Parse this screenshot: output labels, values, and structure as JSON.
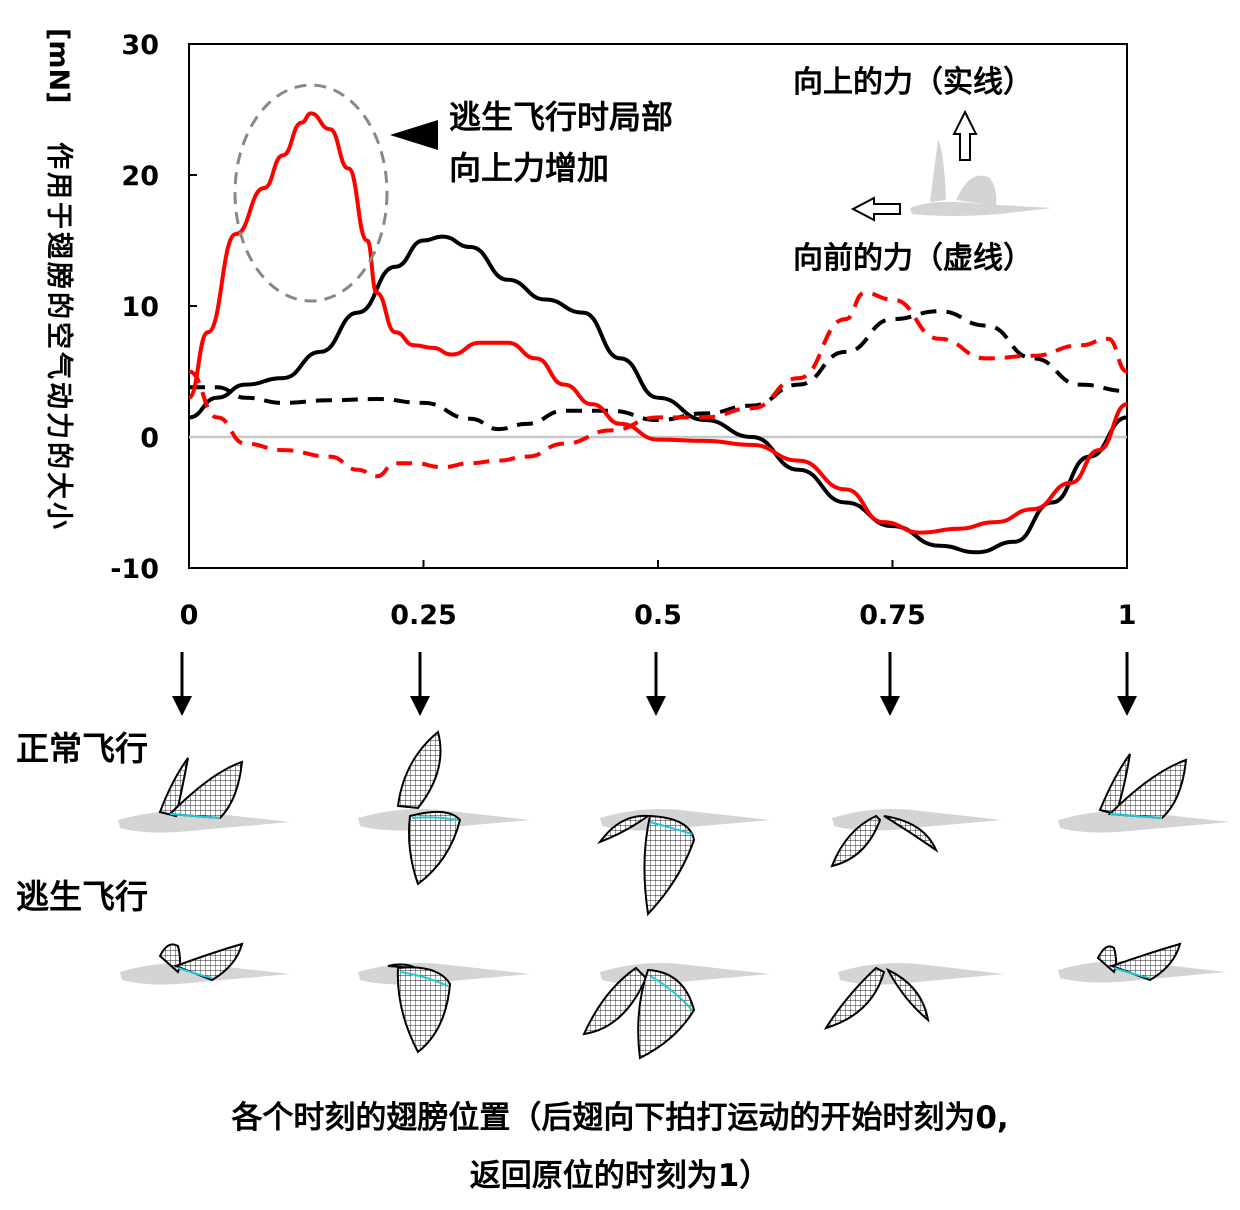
{
  "chart_data": {
    "type": "line",
    "ylabel": "[mN] 作用于翅膀的空气动力的大小",
    "ylabel_unit": "[mN]",
    "ylabel_text": "作用于翅膀的空气动力的大小",
    "xlim": [
      0,
      1
    ],
    "ylim": [
      -10,
      30
    ],
    "yticks": [
      "30",
      "20",
      "10",
      "0",
      "-10"
    ],
    "xticks": [
      "0",
      "0.25",
      "0.5",
      "0.75",
      "1"
    ],
    "grid": false,
    "series": [
      {
        "color": "#000000",
        "style": "solid",
        "x": [
          0,
          0.03,
          0.06,
          0.1,
          0.14,
          0.18,
          0.22,
          0.25,
          0.27,
          0.3,
          0.34,
          0.38,
          0.42,
          0.46,
          0.5,
          0.55,
          0.6,
          0.65,
          0.7,
          0.75,
          0.8,
          0.84,
          0.88,
          0.92,
          0.96,
          1.0
        ],
        "y": [
          1.5,
          3.0,
          4.0,
          4.5,
          6.5,
          9.5,
          13.0,
          15.0,
          15.3,
          14.5,
          12.0,
          10.5,
          9.5,
          6.0,
          3.0,
          1.3,
          0.0,
          -2.5,
          -5.0,
          -6.8,
          -8.3,
          -8.8,
          -8.0,
          -5.0,
          -1.5,
          1.5
        ]
      },
      {
        "color": "#000000",
        "style": "dashed",
        "x": [
          0,
          0.03,
          0.06,
          0.1,
          0.15,
          0.2,
          0.25,
          0.3,
          0.33,
          0.36,
          0.4,
          0.45,
          0.5,
          0.55,
          0.6,
          0.65,
          0.7,
          0.75,
          0.8,
          0.85,
          0.9,
          0.95,
          1.0
        ],
        "y": [
          3.8,
          3.8,
          3.0,
          2.6,
          2.8,
          2.9,
          2.6,
          1.4,
          0.6,
          1.0,
          2.0,
          2.0,
          1.3,
          1.8,
          2.4,
          4.0,
          6.5,
          9.0,
          9.6,
          8.5,
          6.0,
          4.0,
          3.5
        ]
      },
      {
        "color": "#ff0000",
        "style": "solid",
        "x": [
          0,
          0.02,
          0.05,
          0.08,
          0.1,
          0.12,
          0.13,
          0.15,
          0.17,
          0.19,
          0.2,
          0.22,
          0.24,
          0.26,
          0.28,
          0.31,
          0.34,
          0.37,
          0.4,
          0.43,
          0.46,
          0.5,
          0.55,
          0.6,
          0.65,
          0.7,
          0.74,
          0.78,
          0.82,
          0.86,
          0.9,
          0.94,
          0.97,
          1.0
        ],
        "y": [
          3.0,
          8.0,
          15.5,
          19.0,
          21.5,
          24.0,
          24.7,
          23.5,
          20.5,
          15.0,
          11.0,
          8.0,
          7.0,
          6.8,
          6.3,
          7.2,
          7.2,
          6.0,
          4.0,
          2.5,
          1.0,
          -0.2,
          -0.3,
          -0.6,
          -1.8,
          -4.0,
          -6.5,
          -7.3,
          -7.0,
          -6.5,
          -5.5,
          -3.5,
          -1.0,
          2.5
        ]
      },
      {
        "color": "#ff0000",
        "style": "dashed",
        "x": [
          0,
          0.03,
          0.06,
          0.1,
          0.15,
          0.18,
          0.2,
          0.22,
          0.24,
          0.27,
          0.3,
          0.33,
          0.36,
          0.4,
          0.45,
          0.5,
          0.55,
          0.6,
          0.65,
          0.7,
          0.72,
          0.75,
          0.8,
          0.85,
          0.9,
          0.95,
          0.98,
          1.0
        ],
        "y": [
          5.0,
          1.5,
          -0.5,
          -1.0,
          -1.5,
          -2.5,
          -3.0,
          -2.0,
          -2.0,
          -2.3,
          -2.0,
          -1.8,
          -1.5,
          -0.5,
          0.5,
          1.5,
          1.5,
          2.2,
          4.5,
          9.0,
          11.0,
          10.5,
          7.5,
          6.0,
          6.2,
          7.0,
          7.5,
          5.0
        ]
      }
    ],
    "annotations": {
      "escape_note_line1": "逃生飞行时局部",
      "escape_note_line2": "向上力增加",
      "upward_force": "向上的力（实线）",
      "forward_force": "向前的力（虚线）"
    }
  },
  "rows": {
    "normal": "正常飞行",
    "escape": "逃生飞行"
  },
  "caption": {
    "line1": "各个时刻的翅膀位置（后翅向下拍打运动的开始时刻为0,",
    "line2": "返回原位的时刻为1）"
  },
  "colors": {
    "normal": "#000000",
    "escape": "#ff0000",
    "ellipse": "#888888",
    "body": "#d6d6d6",
    "wing_vein": "#22c8d8"
  }
}
